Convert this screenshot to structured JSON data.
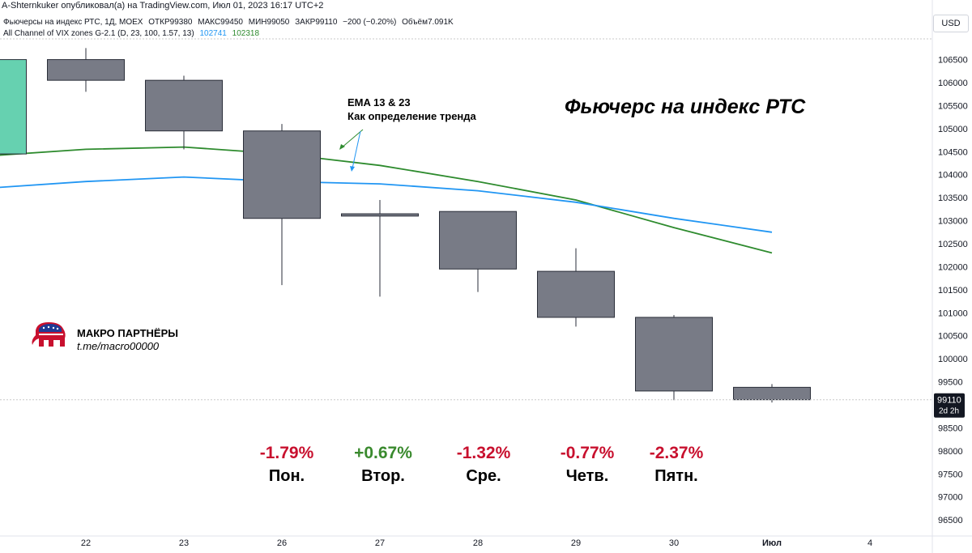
{
  "header": {
    "publisher": "A-Shternkuker опубликовал(а) на TradingView.com, Июл 01, 2023 16:17 UTC+2",
    "symbol": "Фьючерсы на индекс РТС, 1Д, MOEX",
    "open": "ОТКР99380",
    "high": "МАКС99450",
    "low": "МИН99050",
    "close": "ЗАКР99110",
    "change": "−200 (−0.20%)",
    "volume": "Объём7.091K",
    "indicator_name": "All Channel of VIX zones G-2.1 (D, 23, 100, 1.57, 13)",
    "indicator_value_1": "102741",
    "indicator_value_2": "102318"
  },
  "currency_button": "USD",
  "annotations": {
    "heading": "Фьючерс на индекс РТС",
    "ema_title": "EMA 13 & 23",
    "ema_subtitle": "Как определение тренда"
  },
  "brand": {
    "name": "МАКРО ПАРТНЁРЫ",
    "link": "t.me/macro00000"
  },
  "day_stats": [
    {
      "pct": "-1.79%",
      "day": "Пон.",
      "trend": "neg"
    },
    {
      "pct": "+0.67%",
      "day": "Втор.",
      "trend": "pos"
    },
    {
      "pct": "-1.32%",
      "day": "Сре.",
      "trend": "neg"
    },
    {
      "pct": "-0.77%",
      "day": "Четв.",
      "trend": "neg"
    },
    {
      "pct": "-2.37%",
      "day": "Пятн.",
      "trend": "neg"
    }
  ],
  "colors": {
    "candle_down_body": "#787b86",
    "candle_up_body": "#66d1b0",
    "ema_fast": "#2e8b2e",
    "ema_slow": "#2196f3",
    "axis_text": "#131722",
    "grid_line": "#c8c8c8",
    "current_price_bg": "#131722"
  },
  "chart_data": {
    "type": "candlestick",
    "ylim": [
      96150,
      106950
    ],
    "y_ticks": [
      96500,
      97000,
      97500,
      98000,
      98500,
      99000,
      99500,
      100000,
      100500,
      101000,
      101500,
      102000,
      102500,
      103000,
      103500,
      104000,
      104500,
      105000,
      105500,
      106000,
      106500
    ],
    "y_tick_labels": [
      "96500",
      "97000",
      "97500",
      "98000",
      "98500",
      "99000",
      "99500",
      "100000",
      "100500",
      "101000",
      "101500",
      "102000",
      "102500",
      "103000",
      "103500",
      "104000",
      "104500",
      "105000",
      "105500",
      "106000",
      "106500"
    ],
    "x_ticks": [
      "22",
      "23",
      "26",
      "27",
      "28",
      "29",
      "30",
      "Июл",
      "4"
    ],
    "x_tick_slots": [
      1,
      2,
      3,
      4,
      5,
      6,
      7,
      8,
      9
    ],
    "candles": [
      {
        "slot": 0,
        "open": 104450,
        "high": 106500,
        "low": 104450,
        "close": 106500,
        "dir": "up"
      },
      {
        "slot": 1,
        "open": 106500,
        "high": 106750,
        "low": 105800,
        "close": 106050,
        "dir": "down"
      },
      {
        "slot": 2,
        "open": 106050,
        "high": 106150,
        "low": 104550,
        "close": 104950,
        "dir": "down"
      },
      {
        "slot": 3,
        "open": 104950,
        "high": 105100,
        "low": 101600,
        "close": 103050,
        "dir": "down"
      },
      {
        "slot": 4,
        "open": 103150,
        "high": 103450,
        "low": 101350,
        "close": 103100,
        "dir": "down"
      },
      {
        "slot": 5,
        "open": 103200,
        "high": 103200,
        "low": 101450,
        "close": 101950,
        "dir": "down"
      },
      {
        "slot": 6,
        "open": 101900,
        "high": 102400,
        "low": 100700,
        "close": 100900,
        "dir": "down"
      },
      {
        "slot": 7,
        "open": 100900,
        "high": 100950,
        "low": 99100,
        "close": 99300,
        "dir": "down"
      },
      {
        "slot": 8,
        "open": 99380,
        "high": 99450,
        "low": 99050,
        "close": 99110,
        "dir": "down"
      }
    ],
    "series": [
      {
        "name": "EMA 13",
        "color": "#2e8b2e",
        "slots": [
          -0.05,
          1,
          2,
          3,
          4,
          5,
          6,
          7,
          8
        ],
        "values": [
          104400,
          104550,
          104600,
          104450,
          104200,
          103850,
          103450,
          102850,
          102300
        ]
      },
      {
        "name": "EMA 23",
        "color": "#2196f3",
        "slots": [
          -0.05,
          1,
          2,
          3,
          4,
          5,
          6,
          7,
          8
        ],
        "values": [
          103700,
          103850,
          103950,
          103850,
          103800,
          103650,
          103400,
          103050,
          102750
        ]
      }
    ],
    "current_price": {
      "value": 99110,
      "label": "99110",
      "countdown": "2d 2h"
    }
  }
}
